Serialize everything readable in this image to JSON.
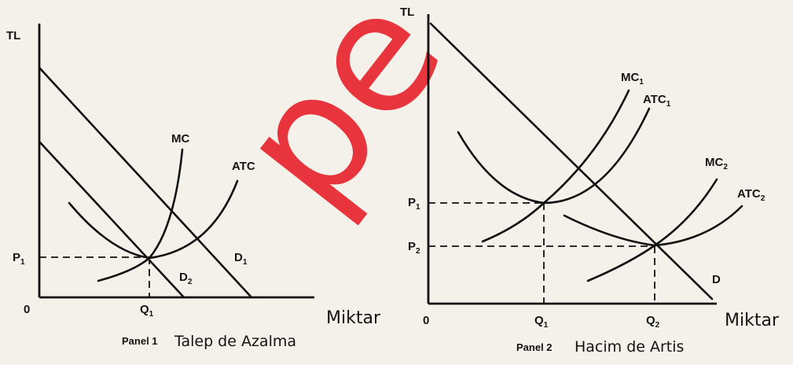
{
  "watermark": {
    "text": "pe",
    "color": "#e7212b"
  },
  "panel1": {
    "y_axis": "TL",
    "origin": "0",
    "x_axis": "Miktar",
    "mc": "MC",
    "atc": "ATC",
    "d1": "D",
    "d1_sub": "1",
    "d2": "D",
    "d2_sub": "2",
    "p1": "P",
    "p1_sub": "1",
    "q1": "Q",
    "q1_sub": "1",
    "caption_a": "Panel 1",
    "caption_b": "Talep de Azalma"
  },
  "panel2": {
    "y_axis": "TL",
    "origin": "0",
    "x_axis": "Miktar",
    "mc1": "MC",
    "mc1_sub": "1",
    "atc1": "ATC",
    "atc1_sub": "1",
    "mc2": "MC",
    "mc2_sub": "2",
    "atc2": "ATC",
    "atc2_sub": "2",
    "d": "D",
    "p1": "P",
    "p1_sub": "1",
    "p2": "P",
    "p2_sub": "2",
    "q1": "Q",
    "q1_sub": "1",
    "q2": "Q",
    "q2_sub": "2",
    "caption_a": "Panel 2",
    "caption_b": "Hacim de Artis"
  }
}
